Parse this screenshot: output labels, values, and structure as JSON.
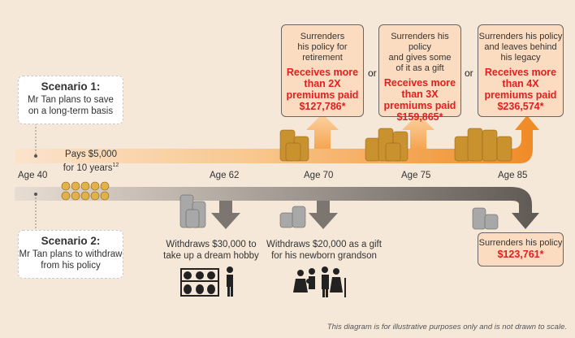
{
  "scenario1": {
    "title": "Scenario 1:",
    "desc1": "Mr Tan plans to save",
    "desc2": "on a long-term basis"
  },
  "scenario2": {
    "title": "Scenario 2:",
    "desc1": "Mr Tan plans to withdraw",
    "desc2": "from his policy"
  },
  "pays": {
    "line1": "Pays $5,000",
    "line2": "for 10 years",
    "sup": "12"
  },
  "ages": [
    "Age 40",
    "Age 62",
    "Age 70",
    "Age 75",
    "Age 85"
  ],
  "boxes": [
    {
      "lines": [
        "Surrenders",
        "his policy for",
        "retirement"
      ],
      "red": [
        "Receives more",
        "than 2X",
        "premiums paid",
        "$127,786*"
      ]
    },
    {
      "lines": [
        "Surrenders his policy",
        "and gives some",
        "of it as a gift"
      ],
      "red": [
        "Receives more",
        "than 3X",
        "premiums paid",
        "$159,865*"
      ]
    },
    {
      "lines": [
        "Surrenders his policy",
        "and leaves behind",
        "his legacy"
      ],
      "red": [
        "Receives more",
        "than 4X",
        "premiums paid",
        "$236,574*"
      ]
    }
  ],
  "or_word": "or",
  "withdraw1": {
    "line1": "Withdraws $30,000 to",
    "line2": "take up a dream hobby"
  },
  "withdraw2": {
    "line1": "Withdraws $20,000 as a gift",
    "line2": "for his newborn grandson"
  },
  "surrender2": {
    "line1": "Surrenders his policy",
    "amount": "$123,761*"
  },
  "footnote": "This diagram is for illustrative purposes only and is not drawn to scale.",
  "colors": {
    "orange": "#f39a3a",
    "grey": "#7d7670",
    "red": "#e02020",
    "coin": "#c9922e",
    "silver": "#a8a8a8"
  }
}
